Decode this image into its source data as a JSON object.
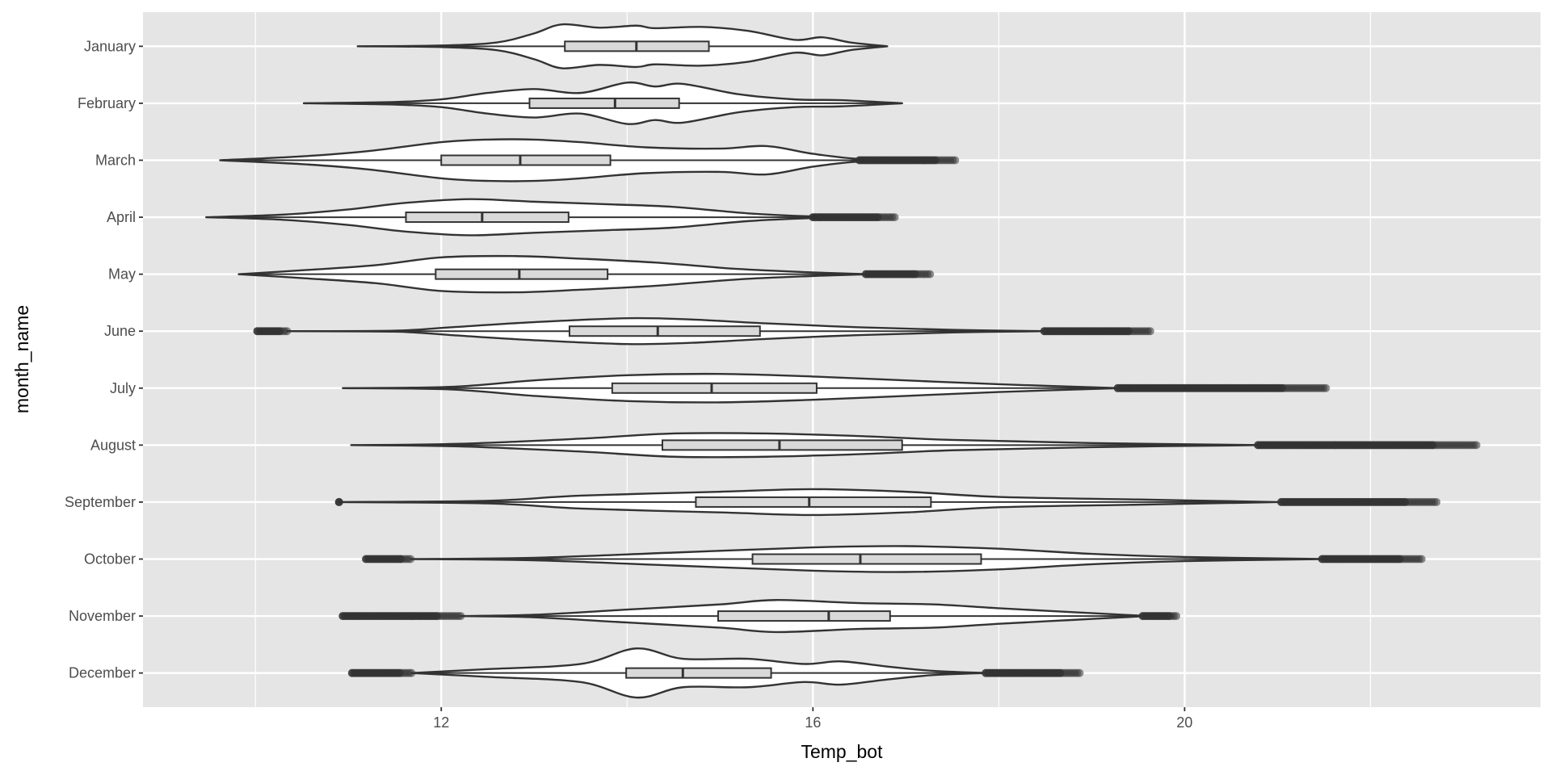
{
  "chart_data": {
    "type": "violin",
    "title": "",
    "xlabel": "Temp_bot",
    "ylabel": "month_name",
    "xlim": [
      8.79,
      23.83
    ],
    "x_major_ticks": [
      12,
      16,
      20
    ],
    "x_minor_ticks": [
      10,
      14,
      18,
      22
    ],
    "x_tick_labels": [
      "12",
      "16",
      "20"
    ],
    "grid": true,
    "colors": {
      "panel": "#e5e5e5",
      "grid": "#ffffff",
      "violin_fill": "#ffffff",
      "outline": "#333333",
      "box_fill": "#d9d9d9",
      "outlier": "#333333"
    },
    "categories": [
      "January",
      "February",
      "March",
      "April",
      "May",
      "June",
      "July",
      "August",
      "September",
      "October",
      "November",
      "December"
    ],
    "series": [
      {
        "name": "January",
        "whisker": [
          11.1,
          16.8
        ],
        "box": [
          13.33,
          14.1,
          14.88
        ],
        "outliers": [],
        "density": [
          [
            11.1,
            0
          ],
          [
            12.0,
            0.03
          ],
          [
            12.6,
            0.15
          ],
          [
            13.0,
            0.5
          ],
          [
            13.3,
            0.85
          ],
          [
            13.7,
            0.72
          ],
          [
            14.1,
            0.8
          ],
          [
            14.3,
            0.7
          ],
          [
            14.8,
            0.75
          ],
          [
            15.3,
            0.6
          ],
          [
            15.8,
            0.25
          ],
          [
            16.1,
            0.35
          ],
          [
            16.4,
            0.15
          ],
          [
            16.8,
            0
          ]
        ]
      },
      {
        "name": "February",
        "whisker": [
          10.52,
          16.96
        ],
        "box": [
          12.95,
          13.87,
          14.56
        ],
        "outliers": [],
        "density": [
          [
            10.52,
            0
          ],
          [
            11.5,
            0.05
          ],
          [
            12.0,
            0.15
          ],
          [
            12.5,
            0.4
          ],
          [
            13.0,
            0.55
          ],
          [
            13.5,
            0.4
          ],
          [
            14.0,
            0.8
          ],
          [
            14.3,
            0.65
          ],
          [
            14.6,
            0.75
          ],
          [
            15.2,
            0.35
          ],
          [
            15.8,
            0.15
          ],
          [
            16.3,
            0.12
          ],
          [
            16.96,
            0
          ]
        ]
      },
      {
        "name": "March",
        "whisker": [
          9.62,
          16.5
        ],
        "box": [
          12.0,
          12.85,
          13.82
        ],
        "outliers": [
          [
            16.5,
            17.53
          ]
        ],
        "density": [
          [
            9.62,
            0
          ],
          [
            10.5,
            0.15
          ],
          [
            11.2,
            0.35
          ],
          [
            12.0,
            0.7
          ],
          [
            12.5,
            0.8
          ],
          [
            13.0,
            0.8
          ],
          [
            13.5,
            0.7
          ],
          [
            14.2,
            0.5
          ],
          [
            15.0,
            0.45
          ],
          [
            15.5,
            0.55
          ],
          [
            16.0,
            0.25
          ],
          [
            16.5,
            0.05
          ],
          [
            17.2,
            0
          ]
        ]
      },
      {
        "name": "April",
        "whisker": [
          9.47,
          16.0
        ],
        "box": [
          11.62,
          12.44,
          13.37
        ],
        "outliers": [
          [
            16.0,
            16.88
          ]
        ],
        "density": [
          [
            9.47,
            0
          ],
          [
            10.3,
            0.1
          ],
          [
            11.0,
            0.3
          ],
          [
            11.6,
            0.55
          ],
          [
            12.3,
            0.7
          ],
          [
            13.0,
            0.6
          ],
          [
            13.8,
            0.5
          ],
          [
            14.5,
            0.4
          ],
          [
            15.3,
            0.15
          ],
          [
            16.0,
            0.03
          ],
          [
            16.5,
            0
          ]
        ]
      },
      {
        "name": "May",
        "whisker": [
          9.82,
          16.57
        ],
        "box": [
          11.94,
          12.84,
          13.79
        ],
        "outliers": [
          [
            16.57,
            17.26
          ]
        ],
        "density": [
          [
            9.82,
            0
          ],
          [
            10.5,
            0.15
          ],
          [
            11.3,
            0.35
          ],
          [
            12.0,
            0.65
          ],
          [
            12.8,
            0.7
          ],
          [
            13.5,
            0.6
          ],
          [
            14.3,
            0.45
          ],
          [
            15.2,
            0.2
          ],
          [
            16.0,
            0.07
          ],
          [
            16.6,
            0
          ]
        ]
      },
      {
        "name": "June",
        "whisker": [
          10.34,
          18.49
        ],
        "box": [
          13.38,
          14.33,
          15.43
        ],
        "outliers": [
          [
            10.02,
            10.34
          ],
          [
            18.49,
            19.63
          ]
        ],
        "density": [
          [
            10.34,
            0
          ],
          [
            11.5,
            0.02
          ],
          [
            12.1,
            0.15
          ],
          [
            13.0,
            0.35
          ],
          [
            14.0,
            0.5
          ],
          [
            14.7,
            0.45
          ],
          [
            15.5,
            0.3
          ],
          [
            16.5,
            0.15
          ],
          [
            17.5,
            0.05
          ],
          [
            18.5,
            0
          ]
        ]
      },
      {
        "name": "July",
        "whisker": [
          10.94,
          19.28
        ],
        "box": [
          13.84,
          14.91,
          16.04
        ],
        "outliers": [
          [
            19.28,
            21.52
          ]
        ],
        "density": [
          [
            10.94,
            0
          ],
          [
            12.1,
            0.05
          ],
          [
            13.0,
            0.3
          ],
          [
            14.0,
            0.5
          ],
          [
            15.0,
            0.55
          ],
          [
            16.0,
            0.45
          ],
          [
            17.0,
            0.3
          ],
          [
            18.0,
            0.15
          ],
          [
            19.3,
            0
          ]
        ]
      },
      {
        "name": "August",
        "whisker": [
          11.03,
          20.79
        ],
        "box": [
          14.38,
          15.64,
          16.96
        ],
        "outliers": [
          [
            20.79,
            23.14
          ]
        ],
        "density": [
          [
            11.03,
            0
          ],
          [
            12.2,
            0.05
          ],
          [
            13.5,
            0.25
          ],
          [
            14.5,
            0.45
          ],
          [
            15.5,
            0.45
          ],
          [
            16.5,
            0.35
          ],
          [
            17.5,
            0.2
          ],
          [
            19.0,
            0.08
          ],
          [
            20.8,
            0
          ]
        ]
      },
      {
        "name": "September",
        "whisker": [
          10.9,
          21.04
        ],
        "box": [
          14.74,
          15.96,
          17.27
        ],
        "outliers": [
          [
            10.9,
            10.9
          ],
          [
            21.04,
            22.71
          ]
        ],
        "density": [
          [
            10.9,
            0
          ],
          [
            12.5,
            0.05
          ],
          [
            13.5,
            0.25
          ],
          [
            15.0,
            0.4
          ],
          [
            16.0,
            0.5
          ],
          [
            17.0,
            0.4
          ],
          [
            18.0,
            0.2
          ],
          [
            19.5,
            0.1
          ],
          [
            21.0,
            0
          ]
        ]
      },
      {
        "name": "October",
        "whisker": [
          11.67,
          21.48
        ],
        "box": [
          15.35,
          16.51,
          17.81
        ],
        "outliers": [
          [
            11.19,
            11.67
          ],
          [
            21.48,
            22.55
          ]
        ],
        "density": [
          [
            11.67,
            0
          ],
          [
            13.0,
            0.05
          ],
          [
            14.5,
            0.25
          ],
          [
            16.0,
            0.45
          ],
          [
            17.0,
            0.5
          ],
          [
            18.0,
            0.4
          ],
          [
            19.0,
            0.2
          ],
          [
            20.0,
            0.08
          ],
          [
            21.5,
            0
          ]
        ]
      },
      {
        "name": "November",
        "whisker": [
          12.21,
          19.55
        ],
        "box": [
          14.98,
          16.17,
          16.83
        ],
        "outliers": [
          [
            10.94,
            12.21
          ],
          [
            19.55,
            19.91
          ]
        ],
        "density": [
          [
            12.21,
            0
          ],
          [
            13.0,
            0.05
          ],
          [
            14.0,
            0.25
          ],
          [
            15.0,
            0.45
          ],
          [
            15.6,
            0.62
          ],
          [
            16.5,
            0.5
          ],
          [
            17.3,
            0.45
          ],
          [
            18.0,
            0.3
          ],
          [
            18.8,
            0.15
          ],
          [
            19.6,
            0
          ]
        ]
      },
      {
        "name": "December",
        "whisker": [
          11.68,
          17.86
        ],
        "box": [
          13.99,
          14.6,
          15.55
        ],
        "outliers": [
          [
            11.04,
            11.68
          ],
          [
            17.86,
            18.87
          ]
        ],
        "density": [
          [
            11.68,
            0
          ],
          [
            12.5,
            0.15
          ],
          [
            13.5,
            0.35
          ],
          [
            14.1,
            0.95
          ],
          [
            14.6,
            0.55
          ],
          [
            15.3,
            0.55
          ],
          [
            15.9,
            0.35
          ],
          [
            16.3,
            0.45
          ],
          [
            16.8,
            0.25
          ],
          [
            17.3,
            0.08
          ],
          [
            17.86,
            0
          ]
        ]
      }
    ]
  }
}
